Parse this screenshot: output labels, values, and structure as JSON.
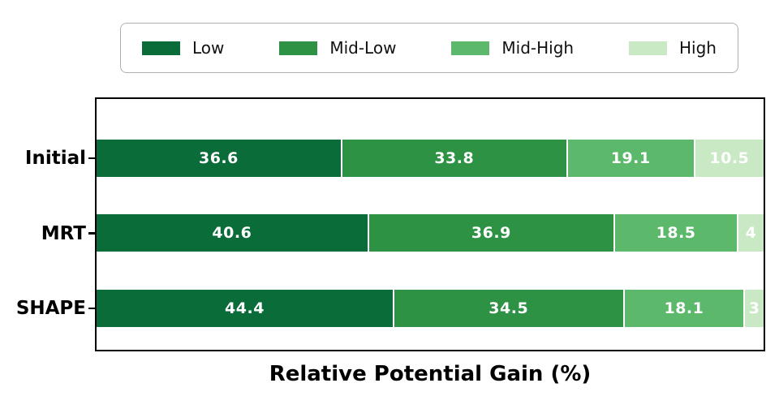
{
  "chart_data": {
    "type": "bar",
    "orientation": "horizontal",
    "stacked": true,
    "title": "",
    "xlabel": "Relative Potential Gain (%)",
    "ylabel": "",
    "xlim": [
      0,
      100
    ],
    "grid": false,
    "legend_position": "top-outside",
    "categories": [
      "Initial",
      "MRT",
      "SHAPE"
    ],
    "series": [
      {
        "name": "Low",
        "color": "#0a6c38",
        "values": [
          36.6,
          40.6,
          44.4
        ]
      },
      {
        "name": "Mid-Low",
        "color": "#2e9245",
        "values": [
          33.8,
          36.9,
          34.5
        ]
      },
      {
        "name": "Mid-High",
        "color": "#5cb96c",
        "values": [
          19.1,
          18.5,
          18.1
        ]
      },
      {
        "name": "High",
        "color": "#c9e8c4",
        "values": [
          10.5,
          4.0,
          3.0
        ]
      }
    ],
    "bar_value_labels": [
      [
        "36.6",
        "33.8",
        "19.1",
        "10.5"
      ],
      [
        "40.6",
        "36.9",
        "18.5",
        "4"
      ],
      [
        "44.4",
        "34.5",
        "18.1",
        "3"
      ]
    ]
  },
  "style": {
    "axis_color": "#000000",
    "legend_border_color": "#b0b0b0",
    "bar_label_color": "#ffffff",
    "background": "#ffffff"
  }
}
